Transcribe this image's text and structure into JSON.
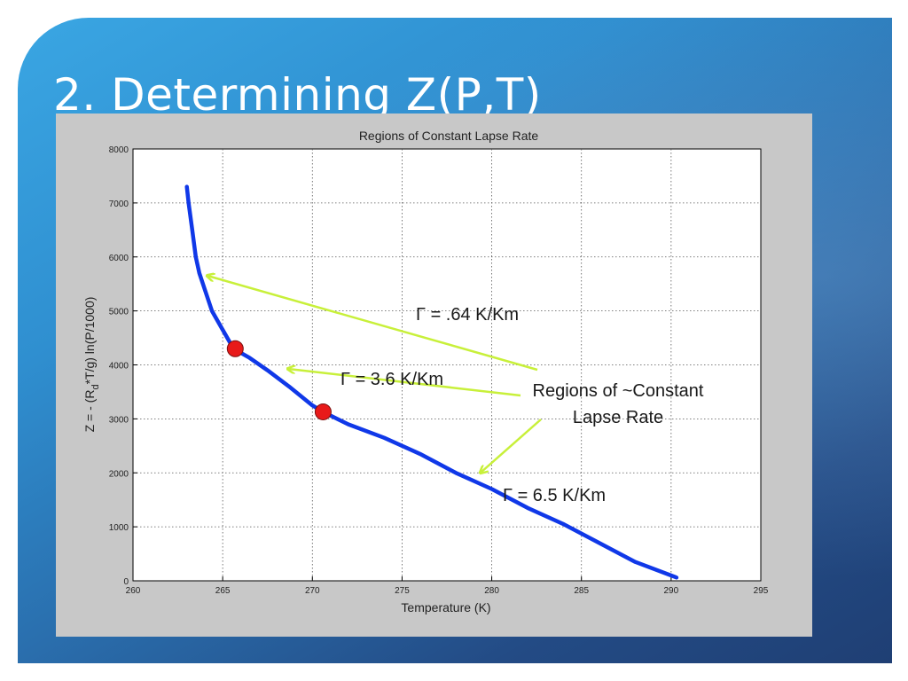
{
  "slide": {
    "title": "2. Determining Z(P,T)"
  },
  "chart_data": {
    "type": "line",
    "title": "Regions of Constant Lapse Rate",
    "xlabel": "Temperature (K)",
    "ylabel_main": "Z = - (R",
    "ylabel_sub": "d",
    "ylabel_tail": "*T/g) ln(P/1000)",
    "xlim": [
      260,
      295
    ],
    "ylim": [
      0,
      8000
    ],
    "xticks": [
      260,
      265,
      270,
      275,
      280,
      285,
      290,
      295
    ],
    "yticks": [
      0,
      1000,
      2000,
      3000,
      4000,
      5000,
      6000,
      7000,
      8000
    ],
    "grid": true,
    "series": [
      {
        "color": "#1038e8",
        "x": [
          263.0,
          263.1,
          263.3,
          263.5,
          263.7,
          264.0,
          264.4,
          265.0,
          265.6,
          266.5,
          267.5,
          268.7,
          270.0,
          270.6,
          272.0,
          274.0,
          276.0,
          278.0,
          280.0,
          282.0,
          284.0,
          286.0,
          288.0,
          290.3
        ],
        "y": [
          7300,
          7000,
          6500,
          6000,
          5700,
          5400,
          5000,
          4650,
          4300,
          4130,
          3900,
          3600,
          3250,
          3130,
          2900,
          2650,
          2350,
          2000,
          1700,
          1350,
          1050,
          700,
          350,
          60
        ]
      }
    ],
    "markers": [
      {
        "x": 265.7,
        "y": 4300,
        "color": "#e81a1a"
      },
      {
        "x": 270.6,
        "y": 3130,
        "color": "#e81a1a"
      }
    ],
    "annotations": [
      {
        "text": "Γ = .64 K/Km"
      },
      {
        "text": "Γ = 3.6 K/Km"
      },
      {
        "text": "Γ = 6.5 K/Km"
      },
      {
        "line1": "Regions of ~Constant",
        "line2": "Lapse Rate"
      }
    ],
    "arrow_color": "#c8f03a"
  }
}
